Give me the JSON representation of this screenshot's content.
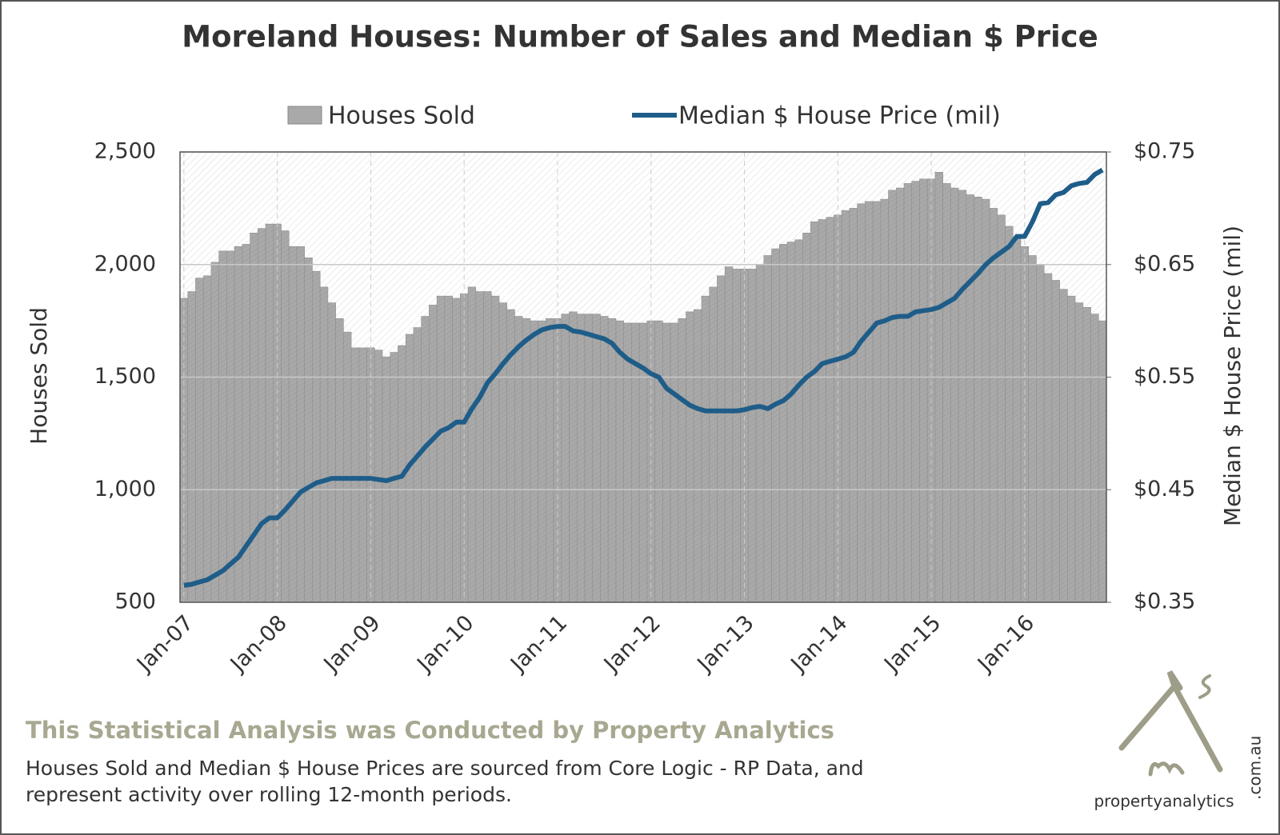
{
  "chart_data": {
    "type": "combo",
    "title": "Moreland Houses: Number of Sales and Median $ Price",
    "y_label": "Houses Sold",
    "y2_label": "Median $ House Price (mil)",
    "categories": [
      "Jan-07",
      null,
      null,
      null,
      null,
      null,
      null,
      null,
      null,
      null,
      null,
      null,
      "Jan-08",
      null,
      null,
      null,
      null,
      null,
      null,
      null,
      null,
      null,
      null,
      null,
      "Jan-09",
      null,
      null,
      null,
      null,
      null,
      null,
      null,
      null,
      null,
      null,
      null,
      "Jan-10",
      null,
      null,
      null,
      null,
      null,
      null,
      null,
      null,
      null,
      null,
      null,
      "Jan-11",
      null,
      null,
      null,
      null,
      null,
      null,
      null,
      null,
      null,
      null,
      null,
      "Jan-12",
      null,
      null,
      null,
      null,
      null,
      null,
      null,
      null,
      null,
      null,
      null,
      "Jan-13",
      null,
      null,
      null,
      null,
      null,
      null,
      null,
      null,
      null,
      null,
      null,
      "Jan-14",
      null,
      null,
      null,
      null,
      null,
      null,
      null,
      null,
      null,
      null,
      null,
      "Jan-15",
      null,
      null,
      null,
      null,
      null,
      null,
      null,
      null,
      null,
      null,
      null,
      "Jan-16",
      null,
      null,
      null,
      null,
      null,
      null,
      null,
      null,
      null,
      null
    ],
    "series": [
      {
        "name": "Houses Sold",
        "type": "bar",
        "color": "#a9a9a9",
        "values": [
          1850,
          1880,
          1940,
          1950,
          2010,
          2060,
          2060,
          2080,
          2090,
          2140,
          2160,
          2180,
          2180,
          2150,
          2080,
          2080,
          2030,
          1970,
          1900,
          1830,
          1760,
          1700,
          1630,
          1630,
          1630,
          1620,
          1590,
          1610,
          1640,
          1690,
          1720,
          1770,
          1820,
          1860,
          1860,
          1850,
          1870,
          1900,
          1880,
          1880,
          1860,
          1830,
          1800,
          1770,
          1760,
          1750,
          1750,
          1760,
          1760,
          1780,
          1790,
          1780,
          1780,
          1780,
          1770,
          1760,
          1750,
          1740,
          1740,
          1740,
          1750,
          1750,
          1740,
          1740,
          1760,
          1790,
          1800,
          1860,
          1900,
          1950,
          1990,
          1980,
          1980,
          1980,
          2000,
          2040,
          2070,
          2090,
          2100,
          2110,
          2140,
          2190,
          2200,
          2210,
          2220,
          2240,
          2250,
          2270,
          2280,
          2280,
          2290,
          2330,
          2340,
          2360,
          2370,
          2380,
          2380,
          2410,
          2360,
          2340,
          2330,
          2310,
          2300,
          2290,
          2250,
          2220,
          2170,
          2120,
          2080,
          2040,
          2000,
          1960,
          1930,
          1890,
          1860,
          1830,
          1810,
          1780,
          1750
        ]
      },
      {
        "name": "Median $ House Price (mil)",
        "type": "line",
        "axis": "y2",
        "color": "#1f5d89",
        "values": [
          0.365,
          0.366,
          0.368,
          0.37,
          0.374,
          0.378,
          0.384,
          0.39,
          0.4,
          0.41,
          0.42,
          0.425,
          0.425,
          0.432,
          0.44,
          0.448,
          0.452,
          0.456,
          0.458,
          0.46,
          0.46,
          0.46,
          0.46,
          0.46,
          0.46,
          0.459,
          0.458,
          0.46,
          0.462,
          0.472,
          0.48,
          0.488,
          0.495,
          0.502,
          0.505,
          0.51,
          0.51,
          0.522,
          0.532,
          0.545,
          0.553,
          0.562,
          0.57,
          0.577,
          0.583,
          0.588,
          0.592,
          0.594,
          0.595,
          0.595,
          0.591,
          0.59,
          0.588,
          0.586,
          0.584,
          0.58,
          0.572,
          0.566,
          0.562,
          0.558,
          0.553,
          0.55,
          0.54,
          0.535,
          0.53,
          0.525,
          0.522,
          0.52,
          0.52,
          0.52,
          0.52,
          0.52,
          0.521,
          0.523,
          0.524,
          0.522,
          0.526,
          0.529,
          0.535,
          0.543,
          0.55,
          0.555,
          0.562,
          0.564,
          0.566,
          0.568,
          0.572,
          0.582,
          0.59,
          0.598,
          0.6,
          0.603,
          0.604,
          0.604,
          0.608,
          0.609,
          0.61,
          0.612,
          0.616,
          0.62,
          0.628,
          0.635,
          0.642,
          0.65,
          0.656,
          0.661,
          0.666,
          0.675,
          0.675,
          0.688,
          0.704,
          0.705,
          0.712,
          0.714,
          0.72,
          0.722,
          0.723,
          0.73,
          0.734
        ]
      }
    ],
    "ylim": [
      500,
      2500
    ],
    "yticks": [
      500,
      {
        "value": 1000,
        "label": "1,000"
      },
      {
        "value": 1500,
        "label": "1,500"
      },
      {
        "value": 2000,
        "label": "2,000"
      },
      {
        "value": 2500,
        "label": "2,500"
      }
    ],
    "y2lim": [
      0.35,
      0.75
    ],
    "y2ticks": [
      {
        "value": 0.35,
        "label": "$0.35"
      },
      {
        "value": 0.45,
        "label": "$0.45"
      },
      {
        "value": 0.55,
        "label": "$0.55"
      },
      {
        "value": 0.65,
        "label": "$0.65"
      },
      {
        "value": 0.75,
        "label": "$0.75"
      }
    ],
    "grid": true,
    "legend": "top",
    "footer_heading": "This Statistical Analysis was Conducted by Property Analytics",
    "footer_note": "Houses Sold and Median $ House Prices are sourced from Core Logic - RP Data, and represent activity over rolling 12-month periods.",
    "logo_name": "propertyanalytics",
    "logo_domain": ".com.au"
  }
}
